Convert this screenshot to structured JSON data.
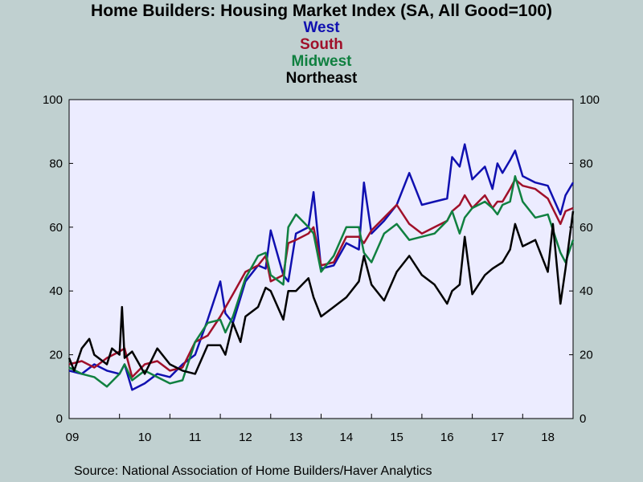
{
  "chart_data": {
    "type": "line",
    "title": "Home Builders: Housing Market Index (SA, All Good=100)",
    "source": "Source:  National Association of Home Builders/Haver Analytics",
    "ylim": [
      0,
      100
    ],
    "yticks": [
      "0",
      "20",
      "40",
      "60",
      "80",
      "100"
    ],
    "x_tick_labels": [
      "09",
      "10",
      "11",
      "12",
      "13",
      "14",
      "15",
      "16",
      "17",
      "18"
    ],
    "x_range": [
      2009.0,
      2019.0
    ],
    "grid": false,
    "legend_placement": "top-center",
    "series": [
      {
        "name": "West",
        "color": "#1010b0",
        "points": [
          [
            2009.0,
            15
          ],
          [
            2009.25,
            14
          ],
          [
            2009.5,
            17
          ],
          [
            2009.75,
            15
          ],
          [
            2010.0,
            14
          ],
          [
            2010.1,
            17
          ],
          [
            2010.25,
            9
          ],
          [
            2010.5,
            11
          ],
          [
            2010.75,
            14
          ],
          [
            2011.0,
            13
          ],
          [
            2011.25,
            17
          ],
          [
            2011.5,
            20
          ],
          [
            2011.75,
            31
          ],
          [
            2012.0,
            43
          ],
          [
            2012.1,
            33
          ],
          [
            2012.25,
            30
          ],
          [
            2012.5,
            43
          ],
          [
            2012.75,
            48
          ],
          [
            2012.9,
            47
          ],
          [
            2013.0,
            59
          ],
          [
            2013.25,
            45
          ],
          [
            2013.35,
            43
          ],
          [
            2013.5,
            58
          ],
          [
            2013.75,
            60
          ],
          [
            2013.85,
            71
          ],
          [
            2014.0,
            47
          ],
          [
            2014.25,
            48
          ],
          [
            2014.5,
            55
          ],
          [
            2014.75,
            53
          ],
          [
            2014.85,
            74
          ],
          [
            2015.0,
            58
          ],
          [
            2015.25,
            62
          ],
          [
            2015.5,
            67
          ],
          [
            2015.75,
            77
          ],
          [
            2016.0,
            67
          ],
          [
            2016.25,
            68
          ],
          [
            2016.5,
            69
          ],
          [
            2016.6,
            82
          ],
          [
            2016.75,
            79
          ],
          [
            2016.85,
            86
          ],
          [
            2017.0,
            75
          ],
          [
            2017.25,
            79
          ],
          [
            2017.4,
            72
          ],
          [
            2017.5,
            80
          ],
          [
            2017.6,
            77
          ],
          [
            2017.75,
            81
          ],
          [
            2017.85,
            84
          ],
          [
            2018.0,
            76
          ],
          [
            2018.25,
            74
          ],
          [
            2018.5,
            73
          ],
          [
            2018.75,
            64
          ],
          [
            2018.85,
            70
          ],
          [
            2019.0,
            74
          ]
        ]
      },
      {
        "name": "South",
        "color": "#a0102a",
        "points": [
          [
            2009.0,
            17
          ],
          [
            2009.25,
            18
          ],
          [
            2009.5,
            16
          ],
          [
            2009.75,
            19
          ],
          [
            2010.0,
            21
          ],
          [
            2010.1,
            22
          ],
          [
            2010.25,
            13
          ],
          [
            2010.5,
            17
          ],
          [
            2010.75,
            18
          ],
          [
            2011.0,
            15
          ],
          [
            2011.25,
            16
          ],
          [
            2011.5,
            24
          ],
          [
            2011.75,
            26
          ],
          [
            2012.0,
            32
          ],
          [
            2012.25,
            39
          ],
          [
            2012.5,
            46
          ],
          [
            2012.75,
            48
          ],
          [
            2012.9,
            51
          ],
          [
            2013.0,
            43
          ],
          [
            2013.25,
            45
          ],
          [
            2013.35,
            55
          ],
          [
            2013.5,
            56
          ],
          [
            2013.75,
            58
          ],
          [
            2013.85,
            60
          ],
          [
            2014.0,
            48
          ],
          [
            2014.25,
            49
          ],
          [
            2014.5,
            57
          ],
          [
            2014.75,
            57
          ],
          [
            2014.85,
            55
          ],
          [
            2015.0,
            59
          ],
          [
            2015.25,
            63
          ],
          [
            2015.5,
            67
          ],
          [
            2015.75,
            61
          ],
          [
            2016.0,
            58
          ],
          [
            2016.25,
            60
          ],
          [
            2016.5,
            62
          ],
          [
            2016.6,
            65
          ],
          [
            2016.75,
            67
          ],
          [
            2016.85,
            70
          ],
          [
            2017.0,
            66
          ],
          [
            2017.25,
            70
          ],
          [
            2017.4,
            66
          ],
          [
            2017.5,
            68
          ],
          [
            2017.6,
            68
          ],
          [
            2017.75,
            72
          ],
          [
            2017.85,
            75
          ],
          [
            2018.0,
            73
          ],
          [
            2018.25,
            72
          ],
          [
            2018.5,
            69
          ],
          [
            2018.75,
            61
          ],
          [
            2018.85,
            65
          ],
          [
            2019.0,
            66
          ]
        ]
      },
      {
        "name": "Midwest",
        "color": "#108040",
        "points": [
          [
            2009.0,
            16
          ],
          [
            2009.25,
            14
          ],
          [
            2009.5,
            13
          ],
          [
            2009.75,
            10
          ],
          [
            2010.0,
            14
          ],
          [
            2010.1,
            17
          ],
          [
            2010.25,
            12
          ],
          [
            2010.5,
            15
          ],
          [
            2010.75,
            13
          ],
          [
            2011.0,
            11
          ],
          [
            2011.25,
            12
          ],
          [
            2011.5,
            24
          ],
          [
            2011.75,
            30
          ],
          [
            2012.0,
            31
          ],
          [
            2012.1,
            27
          ],
          [
            2012.25,
            32
          ],
          [
            2012.5,
            44
          ],
          [
            2012.75,
            51
          ],
          [
            2012.9,
            52
          ],
          [
            2013.0,
            45
          ],
          [
            2013.25,
            42
          ],
          [
            2013.35,
            60
          ],
          [
            2013.5,
            64
          ],
          [
            2013.75,
            60
          ],
          [
            2013.85,
            58
          ],
          [
            2014.0,
            46
          ],
          [
            2014.25,
            51
          ],
          [
            2014.5,
            60
          ],
          [
            2014.75,
            60
          ],
          [
            2014.85,
            52
          ],
          [
            2015.0,
            49
          ],
          [
            2015.25,
            58
          ],
          [
            2015.5,
            61
          ],
          [
            2015.75,
            56
          ],
          [
            2016.0,
            57
          ],
          [
            2016.25,
            58
          ],
          [
            2016.5,
            62
          ],
          [
            2016.6,
            65
          ],
          [
            2016.75,
            58
          ],
          [
            2016.85,
            63
          ],
          [
            2017.0,
            66
          ],
          [
            2017.25,
            68
          ],
          [
            2017.4,
            66
          ],
          [
            2017.5,
            64
          ],
          [
            2017.6,
            67
          ],
          [
            2017.75,
            68
          ],
          [
            2017.85,
            76
          ],
          [
            2018.0,
            68
          ],
          [
            2018.25,
            63
          ],
          [
            2018.5,
            64
          ],
          [
            2018.75,
            52
          ],
          [
            2018.85,
            49
          ],
          [
            2019.0,
            56
          ]
        ]
      },
      {
        "name": "Northeast",
        "color": "#000000",
        "points": [
          [
            2009.0,
            19
          ],
          [
            2009.1,
            15
          ],
          [
            2009.25,
            22
          ],
          [
            2009.4,
            25
          ],
          [
            2009.5,
            20
          ],
          [
            2009.75,
            17
          ],
          [
            2009.85,
            22
          ],
          [
            2010.0,
            20
          ],
          [
            2010.05,
            35
          ],
          [
            2010.1,
            19
          ],
          [
            2010.25,
            21
          ],
          [
            2010.5,
            14
          ],
          [
            2010.75,
            22
          ],
          [
            2011.0,
            17
          ],
          [
            2011.25,
            15
          ],
          [
            2011.5,
            14
          ],
          [
            2011.75,
            23
          ],
          [
            2012.0,
            23
          ],
          [
            2012.1,
            20
          ],
          [
            2012.25,
            30
          ],
          [
            2012.4,
            24
          ],
          [
            2012.5,
            32
          ],
          [
            2012.75,
            35
          ],
          [
            2012.9,
            41
          ],
          [
            2013.0,
            40
          ],
          [
            2013.25,
            31
          ],
          [
            2013.35,
            40
          ],
          [
            2013.5,
            40
          ],
          [
            2013.75,
            44
          ],
          [
            2013.85,
            38
          ],
          [
            2014.0,
            32
          ],
          [
            2014.25,
            35
          ],
          [
            2014.5,
            38
          ],
          [
            2014.75,
            43
          ],
          [
            2014.85,
            51
          ],
          [
            2015.0,
            42
          ],
          [
            2015.25,
            37
          ],
          [
            2015.5,
            46
          ],
          [
            2015.75,
            51
          ],
          [
            2016.0,
            45
          ],
          [
            2016.25,
            42
          ],
          [
            2016.5,
            36
          ],
          [
            2016.6,
            40
          ],
          [
            2016.75,
            42
          ],
          [
            2016.85,
            57
          ],
          [
            2017.0,
            39
          ],
          [
            2017.25,
            45
          ],
          [
            2017.4,
            47
          ],
          [
            2017.5,
            48
          ],
          [
            2017.6,
            49
          ],
          [
            2017.75,
            53
          ],
          [
            2017.85,
            61
          ],
          [
            2018.0,
            54
          ],
          [
            2018.25,
            56
          ],
          [
            2018.5,
            46
          ],
          [
            2018.6,
            61
          ],
          [
            2018.75,
            36
          ],
          [
            2018.85,
            47
          ],
          [
            2019.0,
            65
          ]
        ]
      }
    ]
  }
}
